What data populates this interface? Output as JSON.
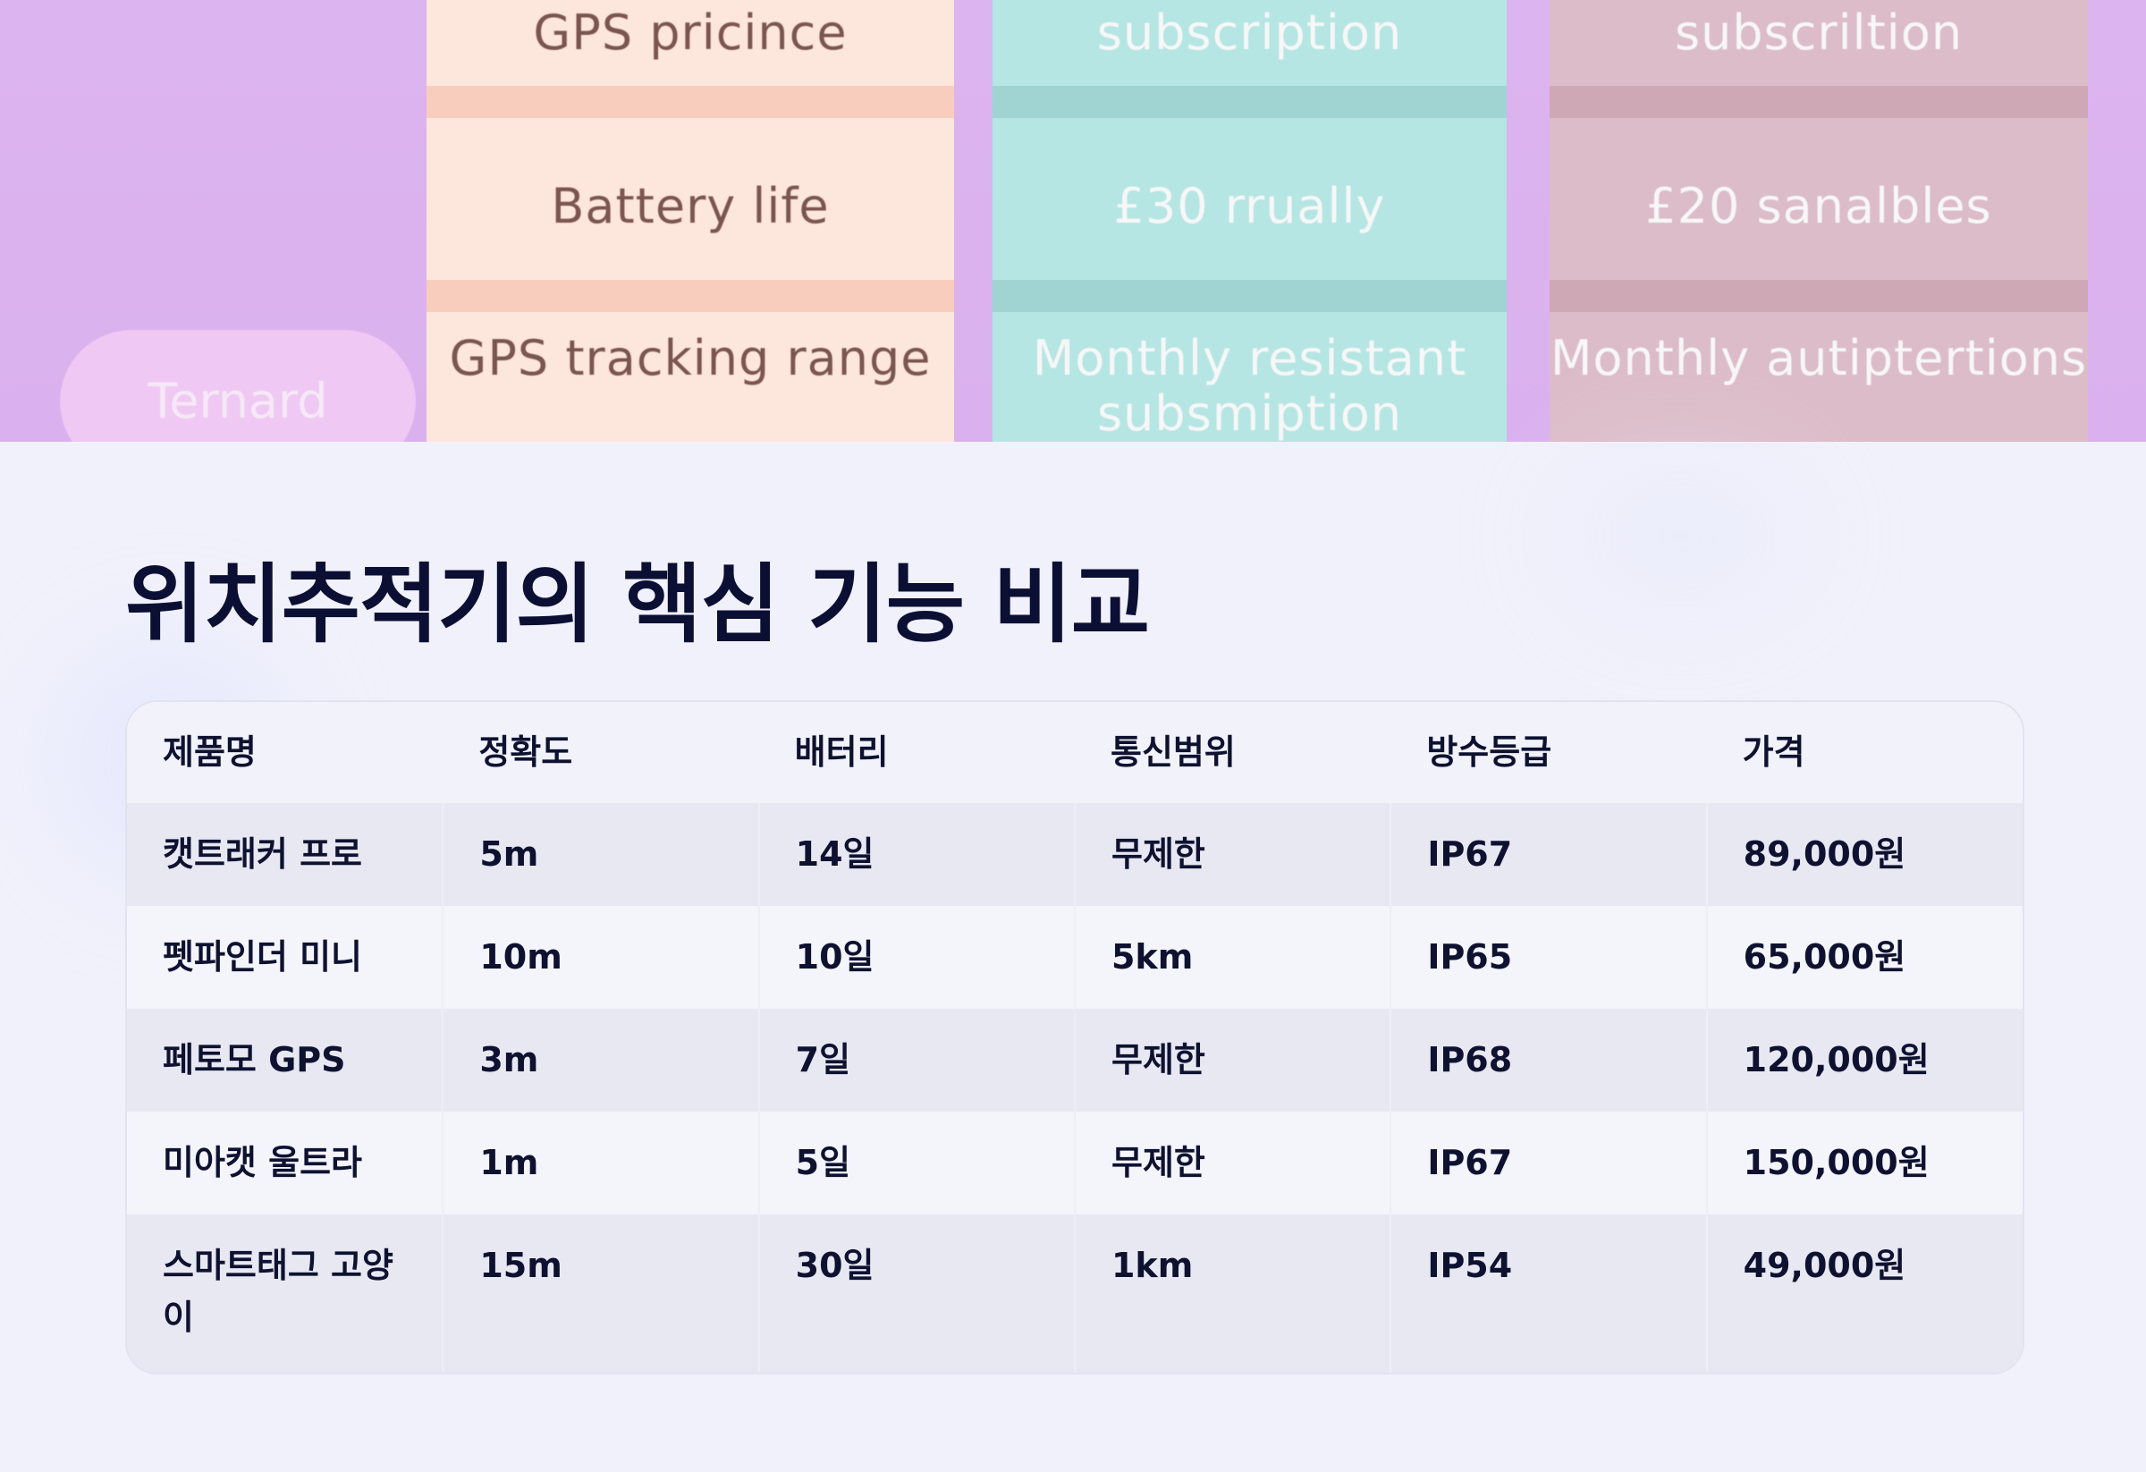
{
  "hero": {
    "pill_label": "Ternard",
    "columns": [
      {
        "cells": [
          "GPS pricince",
          "Battery life",
          "GPS  tracking range"
        ]
      },
      {
        "cells": [
          "subscription",
          "£30 rrually",
          "Monthly resistant subsmiption"
        ]
      },
      {
        "cells": [
          "subscriltion",
          "£20 sanalbles",
          "Monthly autiptertions"
        ]
      }
    ]
  },
  "title": "위치추적기의 핵심 기능 비교",
  "table": {
    "headers": [
      "제품명",
      "정확도",
      "배터리",
      "통신범위",
      "방수등급",
      "가격"
    ],
    "rows": [
      [
        "캣트래커 프로",
        "5m",
        "14일",
        "무제한",
        "IP67",
        "89,000원"
      ],
      [
        "펫파인더 미니",
        "10m",
        "10일",
        "5km",
        "IP65",
        "65,000원"
      ],
      [
        "페토모 GPS",
        "3m",
        "7일",
        "무제한",
        "IP68",
        "120,000원"
      ],
      [
        "미아캣 울트라",
        "1m",
        "5일",
        "무제한",
        "IP67",
        "150,000원"
      ],
      [
        "스마트태그 고양이",
        "15m",
        "30일",
        "1km",
        "IP54",
        "49,000원"
      ]
    ]
  }
}
